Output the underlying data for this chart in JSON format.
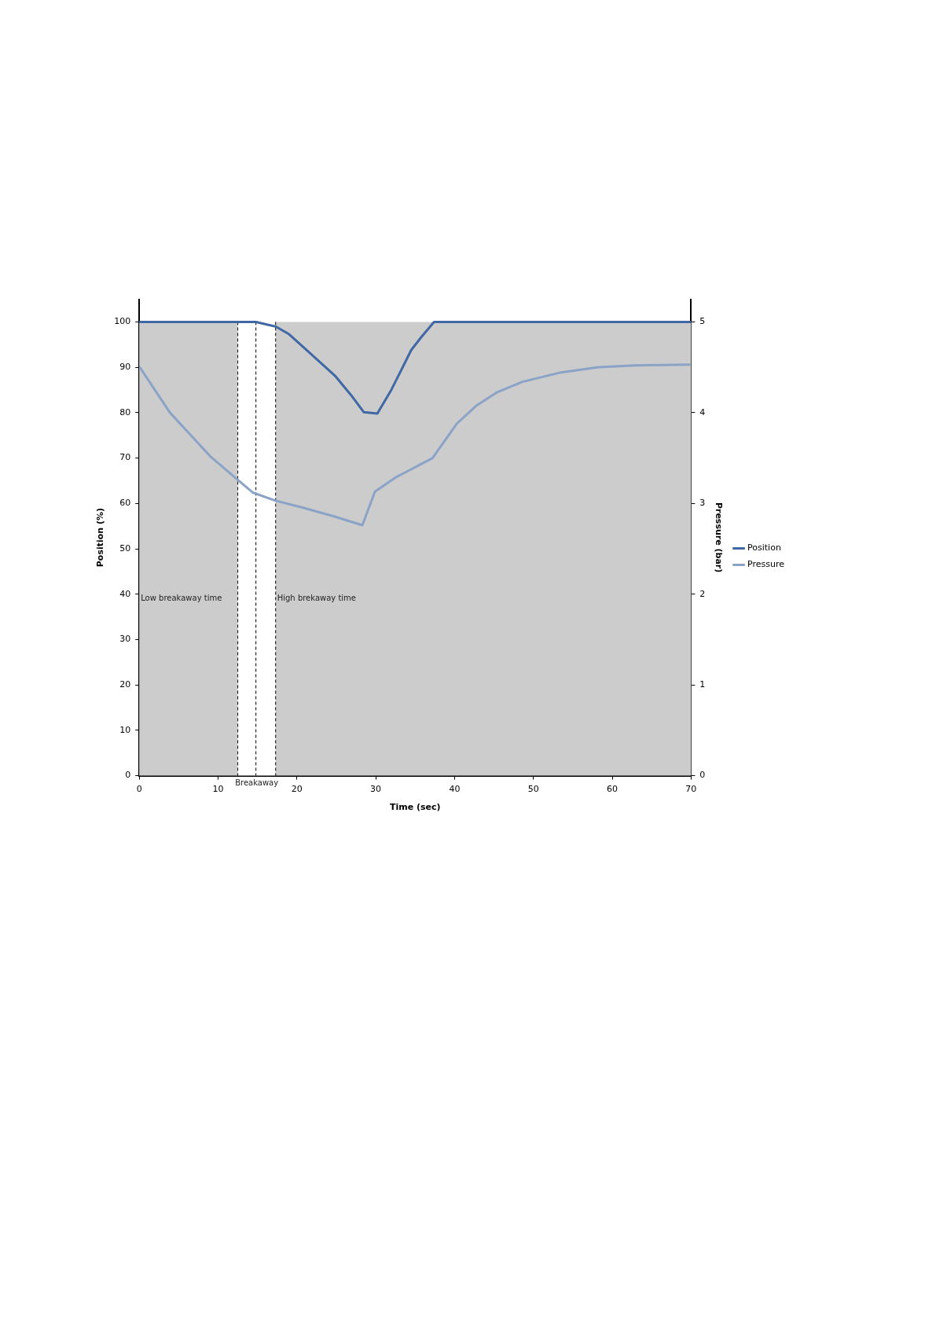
{
  "chart_data": {
    "type": "line",
    "xlabel": "Time (sec)",
    "ylabel": "Position (%)",
    "y2label": "Pressure (bar)",
    "xlim": [
      0,
      70
    ],
    "xticks": [
      0,
      10,
      20,
      30,
      40,
      50,
      60,
      70
    ],
    "ylim": [
      0,
      105
    ],
    "yticks": [
      0,
      10,
      20,
      30,
      40,
      50,
      60,
      70,
      80,
      90,
      100
    ],
    "y2lim": [
      0,
      5.25
    ],
    "y2ticks": [
      0,
      1,
      2,
      3,
      4,
      5
    ],
    "legend": "right",
    "grid": false,
    "marker": "none",
    "line_style": "solid",
    "series": [
      {
        "name": "Position",
        "color": "#3f68a4",
        "x": [
          0,
          14.8,
          16.5,
          17.3,
          19.0,
          21.8,
          24.9,
          26.9,
          28.5,
          30.2,
          32.0,
          34.5,
          35.8,
          37.4,
          70
        ],
        "values": [
          100,
          100,
          99.3,
          99,
          97.3,
          92.9,
          88,
          83.8,
          80.1,
          79.8,
          85.1,
          93.8,
          96.7,
          100,
          100
        ]
      },
      {
        "name": "Pressure",
        "color": "#8aa3c7",
        "axis": "y2",
        "x": [
          0,
          3.9,
          9.0,
          12.5,
          14.4,
          17.3,
          20.5,
          24.6,
          28.3,
          29.9,
          32.6,
          37.2,
          40.3,
          42.8,
          45.3,
          48.6,
          53.3,
          58.1,
          62.9,
          69.9
        ],
        "values": [
          4.51,
          4.0,
          3.52,
          3.26,
          3.12,
          3.03,
          2.96,
          2.86,
          2.76,
          3.13,
          3.29,
          3.5,
          3.88,
          4.08,
          4.22,
          4.34,
          4.44,
          4.5,
          4.52,
          4.53
        ]
      }
    ],
    "bands": [
      {
        "axis": "x",
        "from": 0,
        "to": 12.5,
        "label": "Low breakaway time",
        "color": "#cccccc"
      },
      {
        "axis": "x",
        "from": 12.5,
        "to": 17.3,
        "label": "Breakaway",
        "color": "#ffffff"
      },
      {
        "axis": "x",
        "from": 17.3,
        "to": 70,
        "label": "High brekaway time",
        "color": "#cccccc"
      }
    ],
    "ref_lines": [
      {
        "axis": "x",
        "value": 12.5,
        "color": "#000000",
        "line_style": "dashed"
      },
      {
        "axis": "x",
        "value": 14.8,
        "color": "#000000",
        "line_style": "dashed"
      },
      {
        "axis": "x",
        "value": 17.3,
        "color": "#000000",
        "line_style": "dashed"
      }
    ]
  }
}
